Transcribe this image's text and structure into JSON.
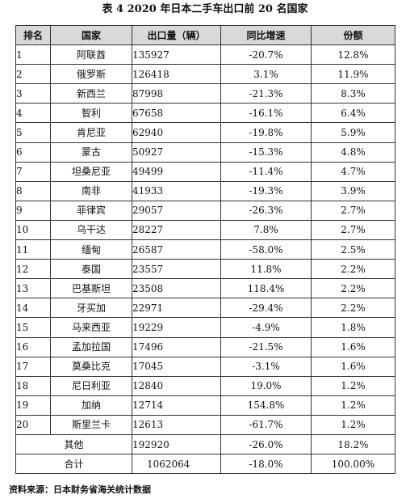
{
  "title": "表 4    2020 年日本二手车出口前 20 名国家",
  "headers": [
    "排名",
    "国家",
    "出口量（辆）",
    "同比增速",
    "份额"
  ],
  "rows": [
    {
      "rank": "1",
      "country": "阿联酋",
      "volume": "135927",
      "yoy": "-20.7%",
      "share": "12.8%"
    },
    {
      "rank": "2",
      "country": "俄罗斯",
      "volume": "126418",
      "yoy": "3.1%",
      "share": "11.9%"
    },
    {
      "rank": "3",
      "country": "新西兰",
      "volume": "87998",
      "yoy": "-21.3%",
      "share": "8.3%"
    },
    {
      "rank": "4",
      "country": "智利",
      "volume": "67658",
      "yoy": "-16.1%",
      "share": "6.4%"
    },
    {
      "rank": "5",
      "country": "肯尼亚",
      "volume": "62940",
      "yoy": "-19.8%",
      "share": "5.9%"
    },
    {
      "rank": "6",
      "country": "蒙古",
      "volume": "50927",
      "yoy": "-15.3%",
      "share": "4.8%"
    },
    {
      "rank": "7",
      "country": "坦桑尼亚",
      "volume": "49499",
      "yoy": "-11.4%",
      "share": "4.7%"
    },
    {
      "rank": "8",
      "country": "南非",
      "volume": "41933",
      "yoy": "-19.3%",
      "share": "3.9%"
    },
    {
      "rank": "9",
      "country": "菲律宾",
      "volume": "29057",
      "yoy": "-26.3%",
      "share": "2.7%"
    },
    {
      "rank": "10",
      "country": "乌干达",
      "volume": "28227",
      "yoy": "7.8%",
      "share": "2.7%"
    },
    {
      "rank": "11",
      "country": "缅甸",
      "volume": "26587",
      "yoy": "-58.0%",
      "share": "2.5%"
    },
    {
      "rank": "12",
      "country": "泰国",
      "volume": "23557",
      "yoy": "11.8%",
      "share": "2.2%"
    },
    {
      "rank": "13",
      "country": "巴基斯坦",
      "volume": "23508",
      "yoy": "118.4%",
      "share": "2.2%"
    },
    {
      "rank": "14",
      "country": "牙买加",
      "volume": "22971",
      "yoy": "-29.4%",
      "share": "2.2%"
    },
    {
      "rank": "15",
      "country": "马来西亚",
      "volume": "19229",
      "yoy": "-4.9%",
      "share": "1.8%"
    },
    {
      "rank": "16",
      "country": "孟加拉国",
      "volume": "17496",
      "yoy": "-21.5%",
      "share": "1.6%"
    },
    {
      "rank": "17",
      "country": "莫桑比克",
      "volume": "17045",
      "yoy": "-3.1%",
      "share": "1.6%"
    },
    {
      "rank": "18",
      "country": "尼日利亚",
      "volume": "12840",
      "yoy": "19.0%",
      "share": "1.2%"
    },
    {
      "rank": "19",
      "country": "加纳",
      "volume": "12714",
      "yoy": "154.8%",
      "share": "1.2%"
    },
    {
      "rank": "20",
      "country": "斯里兰卡",
      "volume": "12613",
      "yoy": "-61.7%",
      "share": "1.2%"
    }
  ],
  "other": {
    "label": "其他",
    "volume": "192920",
    "yoy": "-26.0%",
    "share": "18.2%"
  },
  "total": {
    "label": "合计",
    "volume": "1062064",
    "yoy": "-18.0%",
    "share": "100.00%"
  },
  "source": "资料来源：日本财务省海关统计数据"
}
